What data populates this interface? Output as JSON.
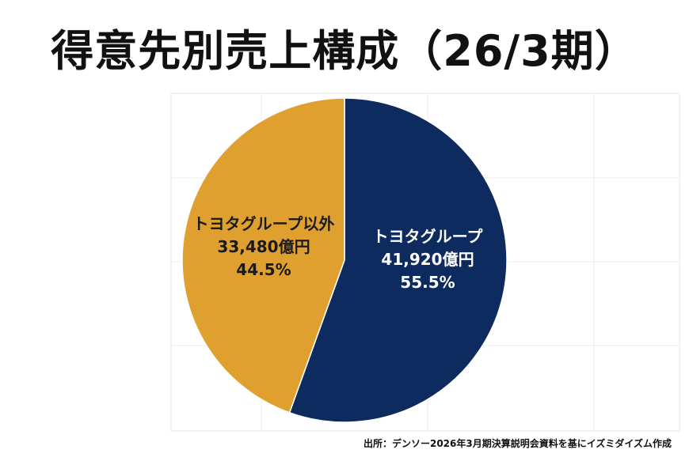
{
  "title": "得意先別売上構成（26/3期）",
  "source": "出所：デンソー2026年3月期決算説明会資料を基にイズミダイズム作成",
  "chart_data": {
    "type": "pie",
    "title": "得意先別売上構成（26/3期）",
    "slices": [
      {
        "name": "トヨタグループ",
        "amount": "41,920億円",
        "percent_label": "55.5%",
        "value": 55.5,
        "color": "#0d2b5e",
        "text_color": "#ffffff"
      },
      {
        "name": "トヨタグループ以外",
        "amount": "33,480億円",
        "percent_label": "44.5%",
        "value": 44.5,
        "color": "#e0a030",
        "text_color": "#1a1a1a"
      }
    ],
    "start_angle": "12 o'clock",
    "direction": "clockwise",
    "grid": true,
    "legend": "none"
  }
}
